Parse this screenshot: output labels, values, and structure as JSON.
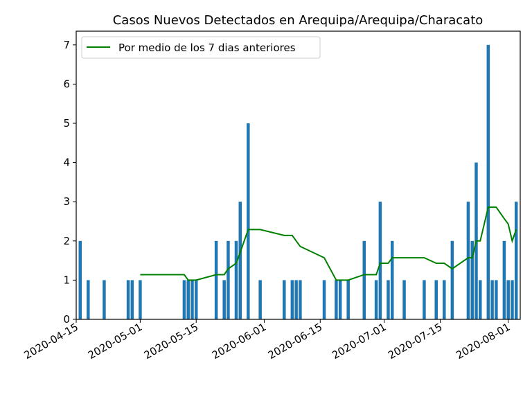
{
  "chart_data": {
    "type": "bar",
    "title": "Casos Nuevos Detectados en Arequipa/Arequipa/Characato",
    "xlabel": "",
    "ylabel": "",
    "xlim": [
      "2020-04-15",
      "2020-08-04"
    ],
    "ylim": [
      0,
      7.35
    ],
    "yticks": [
      0,
      1,
      2,
      3,
      4,
      5,
      6,
      7
    ],
    "xticks": [
      "2020-04-15",
      "2020-05-01",
      "2020-05-15",
      "2020-06-01",
      "2020-06-15",
      "2020-07-01",
      "2020-07-15",
      "2020-08-01"
    ],
    "bar_color": "#1f77b4",
    "line_color": "#008000",
    "legend": {
      "position": "top-left",
      "entries": [
        "Por medio de los 7 dias anteriores"
      ]
    },
    "series": [
      {
        "kind": "bar",
        "x": [
          "2020-04-16",
          "2020-04-18",
          "2020-04-22",
          "2020-04-28",
          "2020-04-29",
          "2020-05-01",
          "2020-05-12",
          "2020-05-13",
          "2020-05-14",
          "2020-05-15",
          "2020-05-20",
          "2020-05-22",
          "2020-05-23",
          "2020-05-25",
          "2020-05-26",
          "2020-05-28",
          "2020-05-31",
          "2020-06-06",
          "2020-06-08",
          "2020-06-09",
          "2020-06-10",
          "2020-06-16",
          "2020-06-19",
          "2020-06-20",
          "2020-06-22",
          "2020-06-26",
          "2020-06-29",
          "2020-06-30",
          "2020-07-02",
          "2020-07-03",
          "2020-07-06",
          "2020-07-11",
          "2020-07-14",
          "2020-07-16",
          "2020-07-18",
          "2020-07-22",
          "2020-07-23",
          "2020-07-24",
          "2020-07-25",
          "2020-07-27",
          "2020-07-28",
          "2020-07-29",
          "2020-07-31",
          "2020-08-01",
          "2020-08-02",
          "2020-08-03"
        ],
        "values": [
          2,
          1,
          1,
          1,
          1,
          1,
          1,
          1,
          1,
          1,
          2,
          1,
          2,
          2,
          3,
          5,
          1,
          1,
          1,
          1,
          1,
          1,
          1,
          1,
          1,
          2,
          1,
          3,
          1,
          2,
          1,
          1,
          1,
          1,
          2,
          3,
          2,
          4,
          1,
          7,
          1,
          1,
          2,
          1,
          1,
          3
        ]
      },
      {
        "kind": "line",
        "name": "Por medio de los 7 dias anteriores",
        "x": [
          "2020-05-01",
          "2020-05-12",
          "2020-05-13",
          "2020-05-15",
          "2020-05-20",
          "2020-05-22",
          "2020-05-23",
          "2020-05-25",
          "2020-05-26",
          "2020-05-28",
          "2020-05-31",
          "2020-06-06",
          "2020-06-08",
          "2020-06-09",
          "2020-06-10",
          "2020-06-16",
          "2020-06-19",
          "2020-06-22",
          "2020-06-26",
          "2020-06-29",
          "2020-06-30",
          "2020-07-02",
          "2020-07-03",
          "2020-07-06",
          "2020-07-11",
          "2020-07-14",
          "2020-07-16",
          "2020-07-18",
          "2020-07-22",
          "2020-07-23",
          "2020-07-24",
          "2020-07-25",
          "2020-07-27",
          "2020-07-28",
          "2020-07-29",
          "2020-07-31",
          "2020-08-01",
          "2020-08-02",
          "2020-08-03"
        ],
        "values": [
          1.14,
          1.14,
          1.0,
          1.0,
          1.14,
          1.14,
          1.29,
          1.43,
          1.71,
          2.29,
          2.29,
          2.14,
          2.14,
          2.0,
          1.86,
          1.57,
          1.0,
          1.0,
          1.14,
          1.14,
          1.43,
          1.43,
          1.57,
          1.57,
          1.57,
          1.43,
          1.43,
          1.29,
          1.57,
          1.57,
          2.0,
          2.0,
          2.86,
          2.86,
          2.86,
          2.57,
          2.43,
          2.0,
          2.29
        ]
      }
    ]
  }
}
